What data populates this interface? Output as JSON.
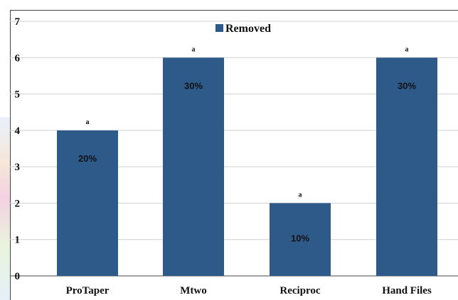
{
  "chart_data": {
    "type": "bar",
    "categories": [
      "ProTaper",
      "Mtwo",
      "Reciproc",
      "Hand Files"
    ],
    "series": [
      {
        "name": "Removed",
        "values": [
          4,
          6,
          2,
          6
        ],
        "color": "#2e5a8a",
        "data_labels": [
          "20%",
          "30%",
          "10%",
          "30%"
        ],
        "significance_labels": [
          "a",
          "a",
          "a",
          "a"
        ]
      }
    ],
    "yticks": [
      "0",
      "1",
      "2",
      "3",
      "4",
      "5",
      "6",
      "7"
    ],
    "ylim": [
      0,
      7
    ],
    "grid": true,
    "legend": "top-center"
  }
}
